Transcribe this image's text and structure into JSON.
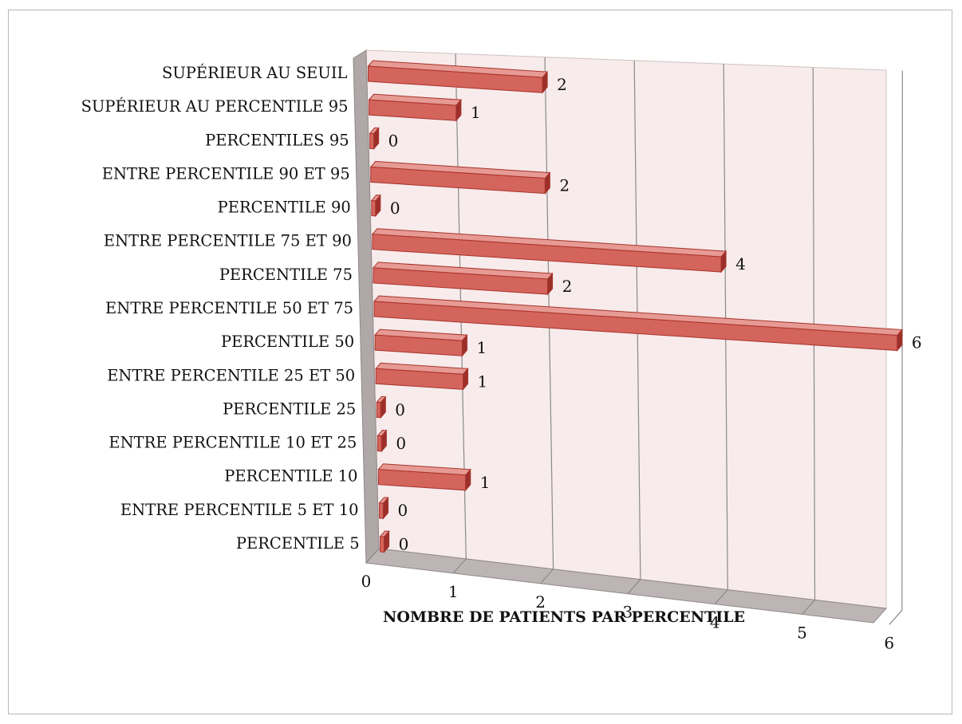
{
  "chart_data": {
    "type": "bar",
    "orientation": "horizontal",
    "style": "3d",
    "categories": [
      "SUPÉRIEUR AU SEUIL",
      "SUPÉRIEUR AU PERCENTILE 95",
      "PERCENTILES 95",
      "ENTRE PERCENTILE 90 ET 95",
      "PERCENTILE 90",
      "ENTRE PERCENTILE 75 ET 90",
      "PERCENTILE 75",
      "ENTRE PERCENTILE 50 ET 75",
      "PERCENTILE 50",
      "ENTRE PERCENTILE 25 ET 50",
      "PERCENTILE 25",
      "ENTRE PERCENTILE 10 ET 25",
      "PERCENTILE 10",
      "ENTRE PERCENTILE 5 ET 10",
      "PERCENTILE 5"
    ],
    "values": [
      2,
      1,
      0,
      2,
      0,
      4,
      2,
      6,
      1,
      1,
      0,
      0,
      1,
      0,
      0
    ],
    "value_labels": [
      "2",
      "1",
      "0",
      "2",
      "0",
      "4",
      "2",
      "6",
      "1",
      "1",
      "0",
      "0",
      "1",
      "0",
      "0"
    ],
    "xlabel": "NOMBRE DE PATIENTS PAR PERCENTILE",
    "ylabel": "",
    "title": "",
    "xlim": [
      0,
      6
    ],
    "xticks": [
      "0",
      "1",
      "2",
      "3",
      "4",
      "5",
      "6"
    ],
    "grid": true,
    "legend": "none",
    "colors": {
      "bar_front": "#d4655c",
      "bar_top": "#e69a93",
      "bar_side": "#9c2f2a",
      "bar_edge": "#a8322c",
      "back_wall": "#f7ebeb",
      "floor": "#bdb5b5",
      "side_wall": "#b0a8a8",
      "gridline": "#8a8a8a"
    }
  }
}
